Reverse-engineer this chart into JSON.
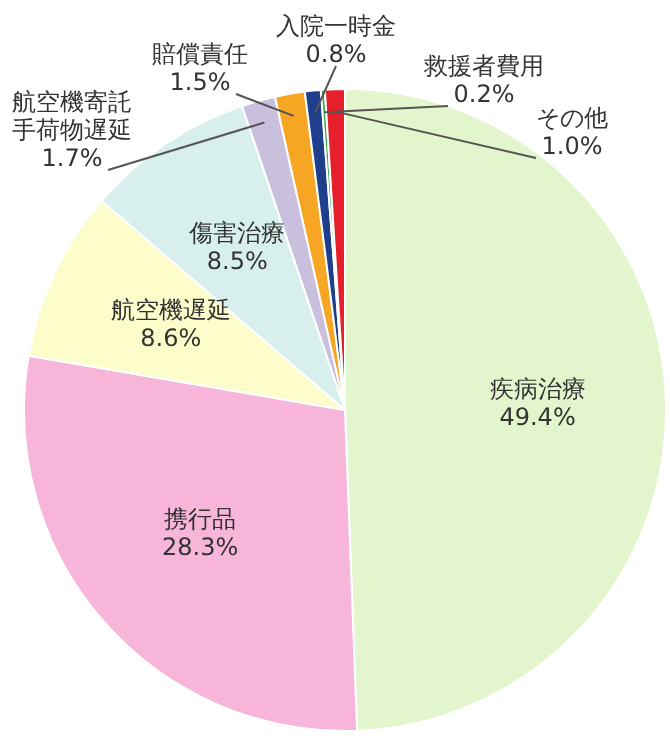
{
  "chart_data": {
    "type": "pie",
    "categories": [
      "疾病治療",
      "携行品",
      "航空機遅延",
      "傷害治療",
      "航空機寄託手荷物遅延",
      "賠償責任",
      "入院一時金",
      "救援者費用",
      "その他"
    ],
    "values": [
      49.4,
      28.3,
      8.6,
      8.5,
      1.7,
      1.5,
      0.8,
      0.2,
      1.0
    ],
    "colors": [
      "#e3f5cc",
      "#f7b5da",
      "#fdfdcc",
      "#d7f0ee",
      "#c9c0de",
      "#f6a623",
      "#1f3e8c",
      "#3aa655",
      "#e61f2a"
    ],
    "value_labels": [
      "49.4%",
      "28.3%",
      "8.6%",
      "8.5%",
      "1.7%",
      "1.5%",
      "0.8%",
      "0.2%",
      "1.0%"
    ],
    "legend": false
  }
}
